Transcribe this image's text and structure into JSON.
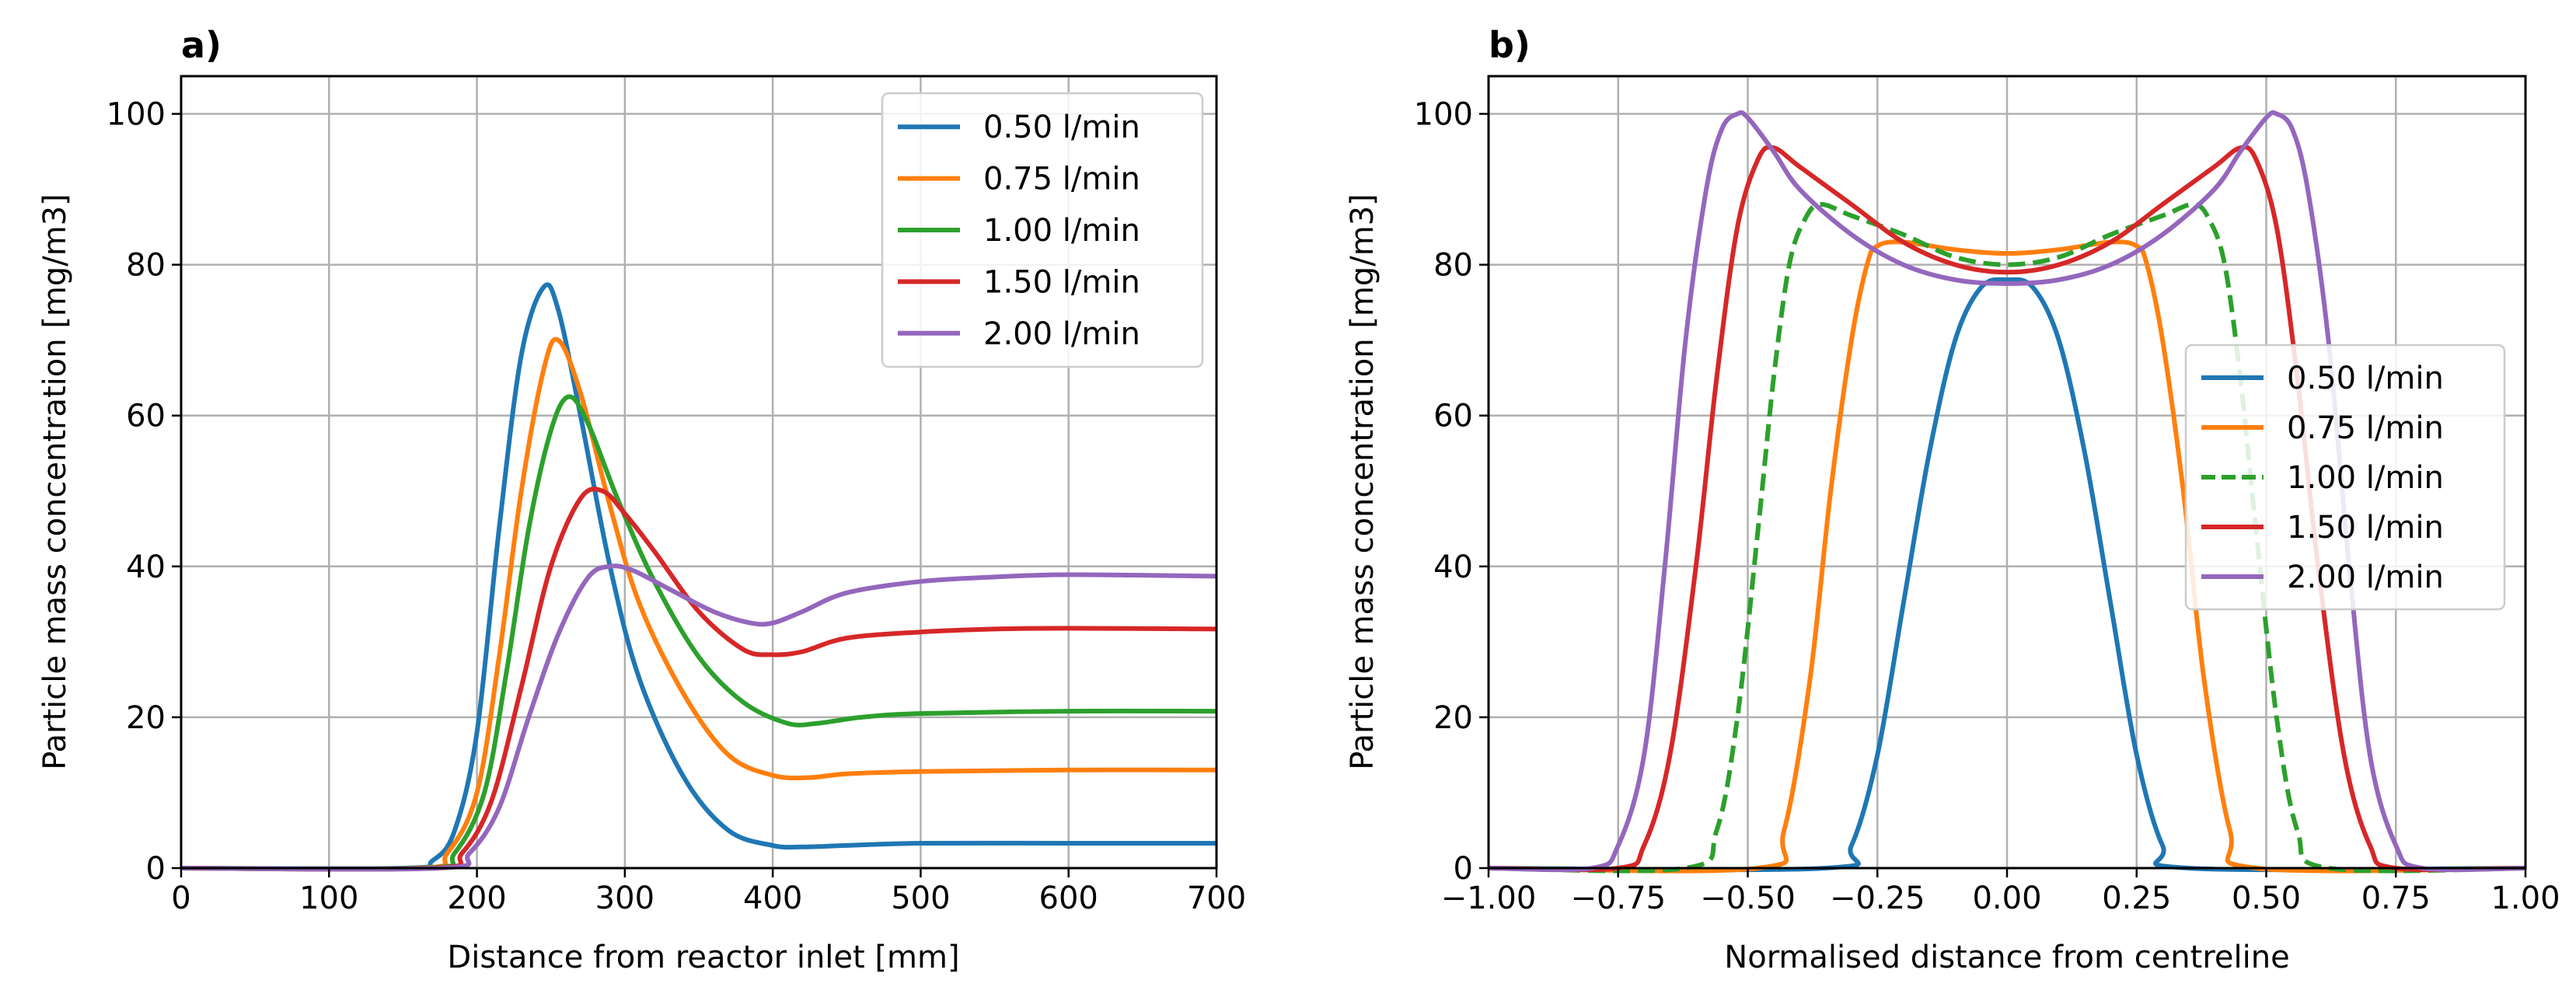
{
  "colors": {
    "s050": "#1f77b4",
    "s075": "#ff7f0e",
    "s100": "#2ca02c",
    "s150": "#d62728",
    "s200": "#9467bd",
    "grid": "#b0b0b0",
    "axis": "#000000"
  },
  "chart_data": [
    {
      "id": "a",
      "type": "line",
      "panel_label": "a)",
      "xlabel": "Distance from reactor inlet [mm]",
      "ylabel": "Particle mass concentration [mg/m3]",
      "xlim": [
        0,
        700
      ],
      "ylim": [
        0,
        105
      ],
      "xticks": [
        0,
        100,
        200,
        300,
        400,
        500,
        600,
        700
      ],
      "xtick_labels": [
        "0",
        "100",
        "200",
        "300",
        "400",
        "500",
        "600",
        "700"
      ],
      "yticks": [
        0,
        20,
        40,
        60,
        80,
        100
      ],
      "ytick_labels": [
        "0",
        "20",
        "40",
        "60",
        "80",
        "100"
      ],
      "grid": true,
      "legend_position": "top-right",
      "series": [
        {
          "name": "0.50 l/min",
          "color_key": "s050",
          "dashed": false,
          "x": [
            0,
            150,
            170,
            185,
            200,
            215,
            230,
            245,
            255,
            270,
            290,
            310,
            340,
            370,
            400,
            420,
            450,
            500,
            600,
            700
          ],
          "y": [
            0,
            0,
            1,
            5,
            18,
            45,
            68,
            77,
            74,
            60,
            40,
            25,
            12,
            5,
            3,
            2.8,
            3,
            3.3,
            3.3,
            3.3
          ]
        },
        {
          "name": "0.75 l/min",
          "color_key": "s075",
          "dashed": false,
          "x": [
            0,
            160,
            180,
            200,
            215,
            230,
            245,
            255,
            270,
            290,
            310,
            340,
            370,
            400,
            425,
            450,
            500,
            600,
            700
          ],
          "y": [
            0,
            0,
            2,
            10,
            28,
            50,
            66,
            70,
            63,
            48,
            35,
            23,
            15,
            12.3,
            12,
            12.5,
            12.8,
            13,
            13
          ]
        },
        {
          "name": "1.00 l/min",
          "color_key": "s100",
          "dashed": false,
          "x": [
            0,
            165,
            185,
            205,
            220,
            235,
            250,
            262,
            275,
            295,
            320,
            350,
            380,
            410,
            430,
            460,
            500,
            600,
            700
          ],
          "y": [
            0,
            0,
            2,
            10,
            26,
            45,
            58,
            62.5,
            59,
            49,
            38,
            28,
            22,
            19.2,
            19.2,
            20,
            20.5,
            20.8,
            20.8
          ]
        },
        {
          "name": "1.50 l/min",
          "color_key": "s150",
          "dashed": false,
          "x": [
            0,
            170,
            190,
            210,
            230,
            250,
            270,
            285,
            300,
            320,
            350,
            380,
            400,
            420,
            450,
            500,
            550,
            600,
            700
          ],
          "y": [
            0,
            0,
            2,
            9,
            24,
            40,
            49,
            50,
            47,
            42,
            34,
            29,
            28.3,
            28.7,
            30.5,
            31.3,
            31.7,
            31.8,
            31.7
          ]
        },
        {
          "name": "2.00 l/min",
          "color_key": "s200",
          "dashed": false,
          "x": [
            0,
            175,
            195,
            215,
            235,
            255,
            275,
            290,
            305,
            330,
            360,
            385,
            400,
            420,
            450,
            500,
            550,
            600,
            700
          ],
          "y": [
            0,
            0,
            2,
            8,
            20,
            31,
            38.5,
            40,
            39.5,
            37,
            34,
            32.5,
            32.5,
            34,
            36.5,
            38,
            38.6,
            38.9,
            38.7
          ]
        }
      ]
    },
    {
      "id": "b",
      "type": "line",
      "panel_label": "b)",
      "xlabel": "Normalised distance from centreline",
      "ylabel": "Particle mass concentration [mg/m3]",
      "xlim": [
        -1.0,
        1.0
      ],
      "ylim": [
        0,
        105
      ],
      "xticks": [
        -1.0,
        -0.75,
        -0.5,
        -0.25,
        0.0,
        0.25,
        0.5,
        0.75,
        1.0
      ],
      "xtick_labels": [
        "−1.00",
        "−0.75",
        "−0.50",
        "−0.25",
        "0.00",
        "0.25",
        "0.50",
        "0.75",
        "1.00"
      ],
      "yticks": [
        0,
        20,
        40,
        60,
        80,
        100
      ],
      "ytick_labels": [
        "0",
        "20",
        "40",
        "60",
        "80",
        "100"
      ],
      "grid": true,
      "legend_position": "center-right",
      "series": [
        {
          "name": "0.50 l/min",
          "color_key": "s050",
          "dashed": false,
          "x": [
            -0.35,
            -0.3,
            -0.25,
            -0.2,
            -0.15,
            -0.1,
            -0.05,
            0.0
          ],
          "y": [
            0,
            3,
            15,
            35,
            55,
            70,
            77,
            78
          ]
        },
        {
          "name": "0.75 l/min",
          "color_key": "s075",
          "dashed": false,
          "x": [
            -0.48,
            -0.43,
            -0.38,
            -0.34,
            -0.3,
            -0.27,
            -0.25,
            -0.2,
            -0.1,
            0.0
          ],
          "y": [
            0,
            5,
            25,
            50,
            70,
            80,
            82.5,
            83,
            82,
            81.5
          ]
        },
        {
          "name": "1.00 l/min",
          "color_key": "s100",
          "dashed": true,
          "x": [
            -0.62,
            -0.56,
            -0.52,
            -0.48,
            -0.45,
            -0.42,
            -0.39,
            -0.36,
            -0.3,
            -0.2,
            -0.1,
            0.0
          ],
          "y": [
            0,
            5,
            20,
            45,
            65,
            80,
            86,
            88,
            86.5,
            84,
            81,
            80
          ]
        },
        {
          "name": "1.50 l/min",
          "color_key": "s150",
          "dashed": false,
          "x": [
            -0.75,
            -0.7,
            -0.65,
            -0.6,
            -0.56,
            -0.52,
            -0.48,
            -0.45,
            -0.4,
            -0.3,
            -0.2,
            -0.1,
            0.0
          ],
          "y": [
            0,
            3,
            15,
            40,
            65,
            85,
            94,
            95.5,
            93,
            88,
            83,
            80,
            79
          ]
        },
        {
          "name": "2.00 l/min",
          "color_key": "s200",
          "dashed": false,
          "x": [
            -0.8,
            -0.75,
            -0.7,
            -0.66,
            -0.62,
            -0.58,
            -0.55,
            -0.52,
            -0.5,
            -0.45,
            -0.4,
            -0.3,
            -0.2,
            -0.1,
            0.0
          ],
          "y": [
            0,
            3,
            15,
            40,
            70,
            90,
            98,
            100,
            99.5,
            95,
            90,
            84,
            80,
            78,
            77.5
          ]
        }
      ]
    }
  ]
}
